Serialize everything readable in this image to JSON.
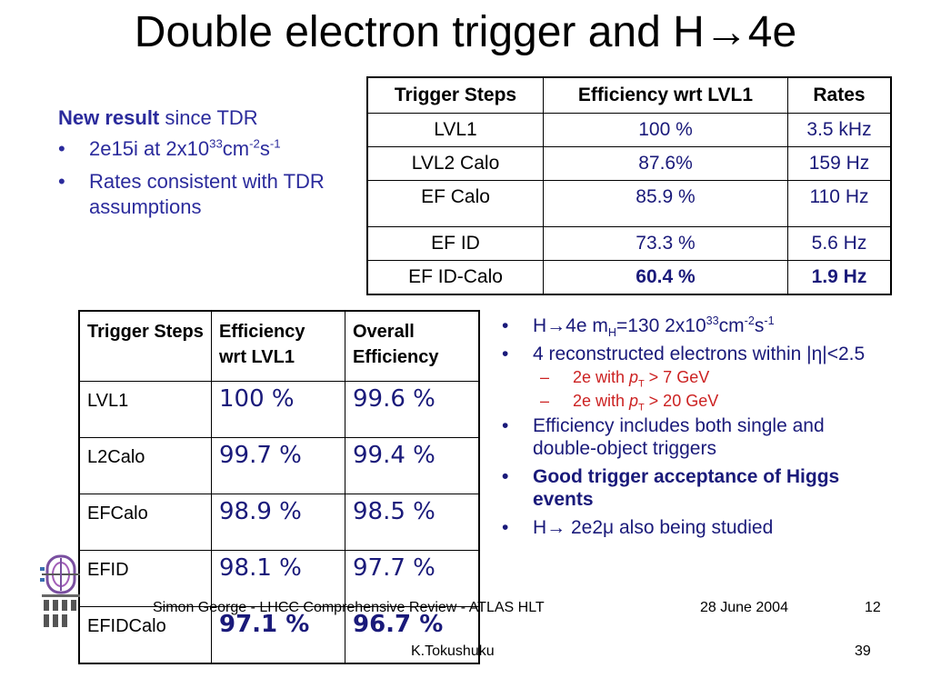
{
  "title": "Double electron trigger and H→4e",
  "left_notes": {
    "heading_bold": "New result",
    "heading_rest": " since TDR",
    "bullet1_pre": "2e15i at 2x10",
    "bullet1_sup1": "33",
    "bullet1_mid": "cm",
    "bullet1_sup2": "-2",
    "bullet1_s": "s",
    "bullet1_sup3": "-1",
    "bullet2": "Rates consistent with TDR assumptions"
  },
  "rates_table": {
    "headers": [
      "Trigger Steps",
      "Efficiency wrt LVL1",
      "Rates"
    ],
    "rows": [
      {
        "step": "LVL1",
        "eff": "100 %",
        "rate": "3.5 kHz"
      },
      {
        "step": "LVL2 Calo",
        "eff": "87.6%",
        "rate": "159 Hz"
      },
      {
        "step": "EF Calo",
        "eff": "85.9 %",
        "rate": "110 Hz"
      },
      {
        "step": "EF ID",
        "eff": "73.3 %",
        "rate": "5.6 Hz"
      },
      {
        "step": "EF ID-Calo",
        "eff": "60.4 %",
        "rate": "1.9 Hz"
      }
    ]
  },
  "eff_table": {
    "headers": [
      "Trigger Steps",
      "Efficiency wrt LVL1",
      "Overall Efficiency"
    ],
    "rows": [
      {
        "step": "LVL1",
        "eff": "100 %",
        "overall": "99.6 %"
      },
      {
        "step": "L2Calo",
        "eff": "99.7 %",
        "overall": "99.4 %"
      },
      {
        "step": "EFCalo",
        "eff": "98.9 %",
        "overall": "98.5 %"
      },
      {
        "step": "EFID",
        "eff": "98.1 %",
        "overall": "97.7 %"
      },
      {
        "step": "EFIDCalo",
        "eff": "97.1 %",
        "overall": "96.7 %"
      }
    ]
  },
  "right_notes": {
    "b1_pre": "H→4e  m",
    "b1_sub": "H",
    "b1_mid": "=130  2x10",
    "b1_sup1": "33",
    "b1_cm": "cm",
    "b1_sup2": "-2",
    "b1_s": "s",
    "b1_sup3": "-1",
    "b2": "4 reconstructed electrons within |η|<2.5",
    "sub1_pre": "2e with ",
    "sub1_p": "p",
    "sub1_T": "T",
    "sub1_post": " > 7 GeV",
    "sub2_pre": "2e with ",
    "sub2_p": "p",
    "sub2_T": "T",
    "sub2_post": " > 20 GeV",
    "b3": "Efficiency includes both single and double-object triggers",
    "b4": "Good trigger acceptance of Higgs events",
    "b5": "H→ 2e2μ also being studied"
  },
  "inner_footer": {
    "text": "Simon George - LHCC Comprehensive Review - ATLAS HLT",
    "date": "28 June 2004",
    "page": "12"
  },
  "outer_footer": {
    "author": "K.Tokushuku",
    "page": "39"
  },
  "logo_icon": "atlas-logo-icon"
}
